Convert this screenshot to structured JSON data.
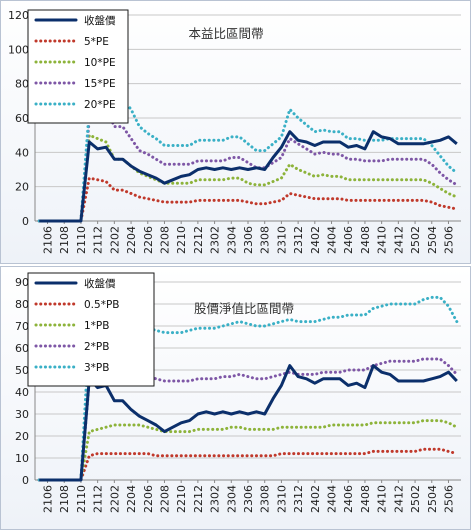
{
  "colors": {
    "close": "#0b2f6b",
    "s1": "#c0392b",
    "s2": "#8db33a",
    "s3": "#7e57a6",
    "s4": "#3ab0c6",
    "grid": "#c8c8c8",
    "axis": "#888888",
    "legend_border": "#1a1a1a"
  },
  "chart_data": [
    {
      "type": "line",
      "title": "本益比區間帶",
      "xlabel": "",
      "ylabel": "",
      "ylim": [
        0,
        120
      ],
      "yticks": [
        "0",
        "20",
        "40",
        "60",
        "80",
        "100",
        "120"
      ],
      "grid": "horizontal",
      "legend_position": "top-left",
      "x": [
        "2105",
        "2106",
        "2107",
        "2108",
        "2109",
        "2110",
        "2111",
        "2112",
        "2201",
        "2202",
        "2203",
        "2204",
        "2205",
        "2206",
        "2207",
        "2208",
        "2209",
        "2210",
        "2211",
        "2212",
        "2301",
        "2302",
        "2303",
        "2304",
        "2305",
        "2306",
        "2307",
        "2308",
        "2309",
        "2310",
        "2311",
        "2312",
        "2401",
        "2402",
        "2403",
        "2404",
        "2405",
        "2406",
        "2407",
        "2408",
        "2409",
        "2410",
        "2411",
        "2412",
        "2501",
        "2502",
        "2503",
        "2504",
        "2505",
        "2506",
        "2507"
      ],
      "xtick_labels": [
        "2106",
        "2108",
        "2110",
        "2112",
        "2202",
        "2204",
        "2206",
        "2208",
        "2210",
        "2212",
        "2302",
        "2304",
        "2306",
        "2308",
        "2310",
        "2312",
        "2402",
        "2404",
        "2406",
        "2408",
        "2410",
        "2412",
        "2502",
        "2504",
        "2506"
      ],
      "series": [
        {
          "name": "收盤價",
          "style": "solid",
          "color_key": "close",
          "values": [
            0,
            0,
            0,
            0,
            0,
            0,
            46,
            42,
            43,
            36,
            36,
            32,
            29,
            27,
            25,
            22,
            24,
            26,
            27,
            30,
            31,
            30,
            31,
            30,
            31,
            30,
            31,
            30,
            37,
            43,
            52,
            47,
            46,
            44,
            46,
            46,
            46,
            43,
            44,
            42,
            52,
            49,
            48,
            45,
            45,
            45,
            45,
            46,
            47,
            49,
            45
          ]
        },
        {
          "name": "5*PE",
          "style": "dotted",
          "color_key": "s1",
          "values": [
            0,
            0,
            0,
            0,
            0,
            0,
            25,
            24,
            23,
            18,
            18,
            16,
            14,
            13,
            12,
            11,
            11,
            11,
            11,
            12,
            12,
            12,
            12,
            12,
            12,
            11,
            10,
            10,
            11,
            12,
            16,
            15,
            14,
            13,
            13,
            13,
            13,
            12,
            12,
            12,
            12,
            12,
            12,
            12,
            12,
            12,
            12,
            11,
            9,
            8,
            7
          ]
        },
        {
          "name": "10*PE",
          "style": "dotted",
          "color_key": "s2",
          "values": [
            0,
            0,
            0,
            0,
            0,
            0,
            50,
            48,
            46,
            36,
            36,
            32,
            28,
            26,
            24,
            22,
            22,
            22,
            22,
            24,
            24,
            24,
            24,
            25,
            25,
            22,
            21,
            21,
            23,
            25,
            33,
            30,
            28,
            26,
            27,
            26,
            26,
            24,
            24,
            24,
            24,
            24,
            24,
            24,
            24,
            24,
            24,
            22,
            19,
            16,
            14
          ]
        },
        {
          "name": "15*PE",
          "style": "dotted",
          "color_key": "s3",
          "values": [
            0,
            0,
            0,
            0,
            0,
            0,
            60,
            60,
            66,
            55,
            55,
            48,
            41,
            39,
            36,
            33,
            33,
            33,
            33,
            35,
            35,
            35,
            35,
            37,
            37,
            34,
            31,
            31,
            34,
            37,
            48,
            45,
            42,
            39,
            40,
            39,
            39,
            36,
            36,
            35,
            35,
            35,
            36,
            36,
            36,
            36,
            36,
            33,
            28,
            24,
            21
          ]
        },
        {
          "name": "20*PE",
          "style": "dotted",
          "color_key": "s4",
          "values": [
            0,
            0,
            0,
            0,
            0,
            0,
            65,
            65,
            70,
            71,
            71,
            65,
            55,
            51,
            48,
            44,
            44,
            44,
            44,
            47,
            47,
            47,
            47,
            49,
            49,
            45,
            41,
            41,
            45,
            49,
            65,
            60,
            56,
            52,
            53,
            52,
            52,
            48,
            48,
            47,
            47,
            47,
            48,
            48,
            48,
            48,
            48,
            44,
            38,
            32,
            28
          ]
        }
      ]
    },
    {
      "type": "line",
      "title": "股價淨值比區間帶",
      "xlabel": "",
      "ylabel": "",
      "ylim": [
        0,
        90
      ],
      "yticks": [
        "0",
        "10",
        "20",
        "30",
        "40",
        "50",
        "60",
        "70",
        "80",
        "90"
      ],
      "grid": "horizontal",
      "legend_position": "top-left",
      "x": [
        "2105",
        "2106",
        "2107",
        "2108",
        "2109",
        "2110",
        "2111",
        "2112",
        "2201",
        "2202",
        "2203",
        "2204",
        "2205",
        "2206",
        "2207",
        "2208",
        "2209",
        "2210",
        "2211",
        "2212",
        "2301",
        "2302",
        "2303",
        "2304",
        "2305",
        "2306",
        "2307",
        "2308",
        "2309",
        "2310",
        "2311",
        "2312",
        "2401",
        "2402",
        "2403",
        "2404",
        "2405",
        "2406",
        "2407",
        "2408",
        "2409",
        "2410",
        "2411",
        "2412",
        "2501",
        "2502",
        "2503",
        "2504",
        "2505",
        "2506",
        "2507"
      ],
      "xtick_labels": [
        "2106",
        "2108",
        "2110",
        "2112",
        "2202",
        "2204",
        "2206",
        "2208",
        "2210",
        "2212",
        "2302",
        "2304",
        "2306",
        "2308",
        "2310",
        "2312",
        "2402",
        "2404",
        "2406",
        "2408",
        "2410",
        "2412",
        "2502",
        "2504",
        "2506"
      ],
      "series": [
        {
          "name": "收盤價",
          "style": "solid",
          "color_key": "close",
          "values": [
            0,
            0,
            0,
            0,
            0,
            0,
            46,
            42,
            43,
            36,
            36,
            32,
            29,
            27,
            25,
            22,
            24,
            26,
            27,
            30,
            31,
            30,
            31,
            30,
            31,
            30,
            31,
            30,
            37,
            43,
            52,
            47,
            46,
            44,
            46,
            46,
            46,
            43,
            44,
            42,
            52,
            49,
            48,
            45,
            45,
            45,
            45,
            46,
            47,
            49,
            45
          ]
        },
        {
          "name": "0.5*PB",
          "style": "dotted",
          "color_key": "s1",
          "values": [
            0,
            0,
            0,
            0,
            0,
            0,
            11,
            12,
            12,
            12,
            12,
            12,
            12,
            12,
            11,
            11,
            11,
            11,
            11,
            11,
            11,
            11,
            11,
            11,
            11,
            11,
            11,
            11,
            11,
            12,
            12,
            12,
            12,
            12,
            12,
            12,
            12,
            12,
            12,
            12,
            13,
            13,
            13,
            13,
            13,
            13,
            14,
            14,
            14,
            13,
            12
          ]
        },
        {
          "name": "1*PB",
          "style": "dotted",
          "color_key": "s2",
          "values": [
            0,
            0,
            0,
            0,
            0,
            0,
            22,
            23,
            24,
            25,
            25,
            25,
            25,
            24,
            23,
            22,
            22,
            22,
            22,
            23,
            23,
            23,
            23,
            24,
            24,
            23,
            23,
            23,
            23,
            24,
            24,
            24,
            24,
            24,
            24,
            25,
            25,
            25,
            25,
            25,
            26,
            26,
            26,
            26,
            26,
            26,
            27,
            27,
            27,
            26,
            24
          ]
        },
        {
          "name": "2*PB",
          "style": "dotted",
          "color_key": "s3",
          "values": [
            0,
            0,
            0,
            0,
            0,
            0,
            45,
            48,
            49,
            50,
            50,
            50,
            49,
            47,
            46,
            45,
            45,
            45,
            45,
            46,
            46,
            46,
            47,
            47,
            48,
            47,
            46,
            46,
            47,
            48,
            49,
            48,
            48,
            48,
            49,
            49,
            49,
            50,
            50,
            50,
            52,
            53,
            54,
            54,
            54,
            54,
            55,
            55,
            55,
            52,
            48
          ]
        },
        {
          "name": "3*PB",
          "style": "dotted",
          "color_key": "s4",
          "values": [
            0,
            0,
            0,
            0,
            0,
            0,
            67,
            70,
            71,
            72,
            72,
            72,
            71,
            69,
            68,
            67,
            67,
            67,
            68,
            69,
            69,
            69,
            70,
            71,
            72,
            71,
            70,
            70,
            71,
            72,
            73,
            72,
            72,
            72,
            73,
            74,
            74,
            75,
            75,
            75,
            78,
            79,
            80,
            80,
            80,
            80,
            82,
            83,
            83,
            79,
            72
          ]
        }
      ]
    }
  ]
}
